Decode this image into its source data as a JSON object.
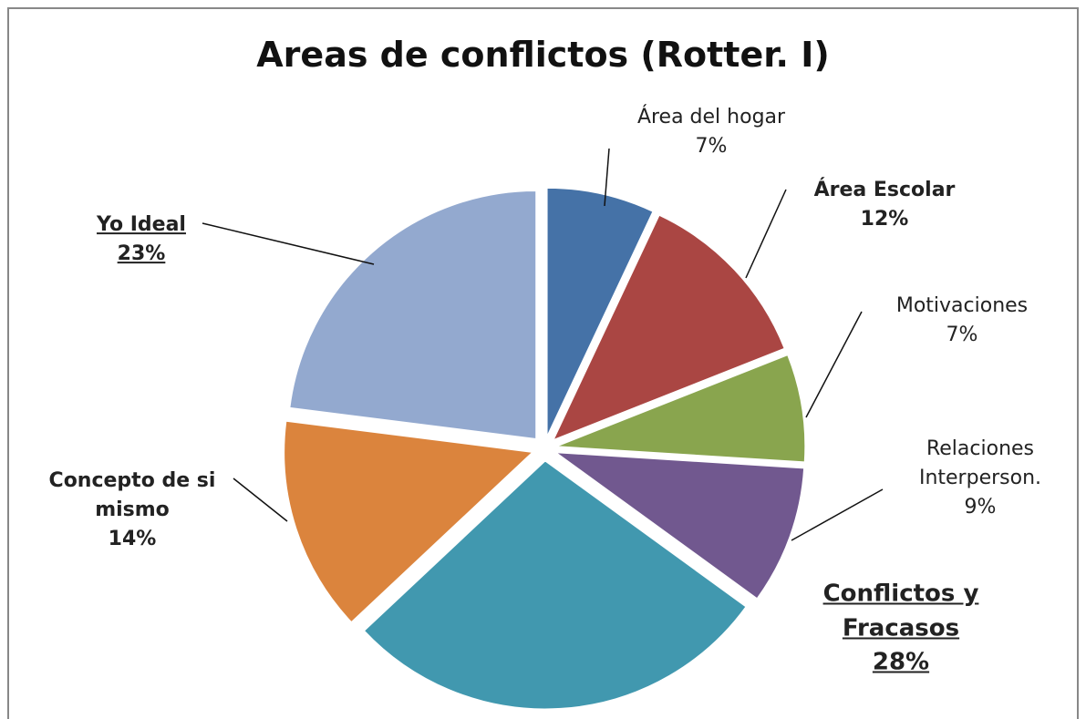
{
  "chart_data": {
    "type": "pie",
    "title": "Areas de conflictos (Rotter. I)",
    "categories": [
      "Área del hogar",
      "Área Escolar",
      "Motivaciones",
      "Relaciones Interperson.",
      "Conflictos y Fracasos",
      "Concepto de si mismo",
      "Yo Ideal"
    ],
    "values": [
      7,
      12,
      7,
      9,
      28,
      14,
      23
    ],
    "value_labels": [
      "7%",
      "12%",
      "7%",
      "9%",
      "28%",
      "14%",
      "23%"
    ],
    "colors": [
      "#4572a7",
      "#aa4643",
      "#89a54e",
      "#71588f",
      "#4198af",
      "#db843d",
      "#93a9cf"
    ]
  }
}
